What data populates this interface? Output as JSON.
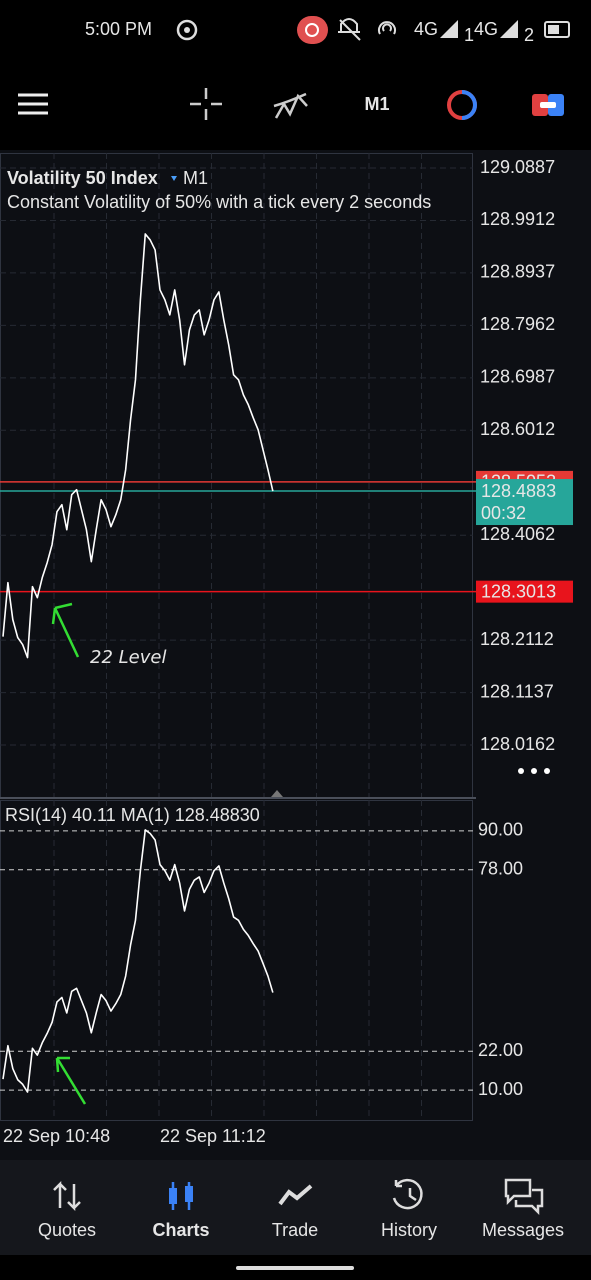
{
  "status_bar": {
    "time": "5:00 PM",
    "network_1": "4G",
    "sim_1": "1",
    "network_2": "4G",
    "sim_2": "2"
  },
  "toolbar": {
    "timeframe": "M1"
  },
  "chart_data": [
    {
      "type": "line",
      "title": "Volatility 50 Index",
      "timeframe": "M1",
      "subtitle": "Constant Volatility of 50% with a tick every 2 seconds",
      "categories": [
        "22 Sep 10:48",
        null,
        null,
        null,
        null,
        null,
        null,
        null,
        null,
        null,
        null,
        null,
        null,
        null,
        null,
        null,
        null,
        null,
        null,
        null,
        null,
        null,
        null,
        null,
        null,
        null,
        null,
        null,
        null,
        null,
        null,
        null,
        "22 Sep 11:12",
        null,
        null,
        null,
        null,
        null,
        null,
        null,
        null,
        null,
        null,
        null,
        null,
        null,
        null,
        null,
        null,
        null,
        null,
        null,
        null,
        null,
        null,
        null
      ],
      "values": [
        128.2177,
        128.318,
        128.2493,
        128.2159,
        128.2029,
        128.1787,
        128.3106,
        128.2901,
        128.3273,
        128.3551,
        128.3886,
        128.4499,
        128.4629,
        128.4164,
        128.4814,
        128.4907,
        128.4536,
        128.4164,
        128.357,
        128.4164,
        128.4721,
        128.4536,
        128.422,
        128.4443,
        128.4721,
        128.5279,
        128.6207,
        128.695,
        128.8436,
        128.9661,
        128.955,
        128.9364,
        128.8621,
        128.8436,
        128.8157,
        128.8621,
        128.8064,
        128.7229,
        128.7878,
        128.8157,
        128.825,
        128.7786,
        128.8064,
        128.8436,
        128.8584,
        128.8064,
        128.76,
        128.7043,
        128.695,
        128.6671,
        128.6486,
        128.6244,
        128.6021,
        128.565,
        128.5279,
        128.4883
      ],
      "color": "#ffffff",
      "ylim": [
        127.9196,
        129.1166
      ],
      "yticks": [
        129.0887,
        128.9912,
        128.8937,
        128.7962,
        128.6987,
        128.6012,
        128.4062,
        128.2112,
        128.1137,
        128.0162
      ],
      "grid": true,
      "price_lines": [
        {
          "value": 128.5053,
          "color": "#e53935"
        },
        {
          "value": 128.3013,
          "color": "#e8141c"
        }
      ],
      "current_price": 128.4883,
      "current_color": "#26a69a",
      "countdown": "00:32",
      "annotation": "22 Level"
    },
    {
      "type": "line",
      "indicator_label": "RSI(14) 40.11 MA(1) 128.48830",
      "values": [
        13.4,
        23.7,
        16.6,
        13.2,
        11.8,
        9.4,
        22.9,
        20.8,
        24.6,
        27.5,
        30.9,
        37.2,
        38.6,
        33.8,
        40.5,
        41.4,
        37.6,
        33.8,
        27.7,
        33.8,
        39.5,
        37.6,
        34.4,
        36.7,
        39.5,
        45.2,
        54.8,
        62.4,
        77.7,
        90.3,
        89.2,
        87.2,
        79.6,
        77.7,
        74.8,
        79.6,
        73.9,
        65.3,
        72.0,
        74.8,
        75.8,
        71.0,
        73.9,
        77.7,
        79.2,
        73.9,
        69.1,
        63.4,
        62.4,
        59.6,
        57.7,
        55.2,
        52.9,
        49.1,
        45.2,
        40.11
      ],
      "color": "#ffffff",
      "ylim": [
        0.77,
        99.54
      ],
      "yticks": [
        {
          "value": 90,
          "label": "90.00"
        },
        {
          "value": 78,
          "label": "78.00"
        },
        {
          "value": 22,
          "label": "22.00"
        },
        {
          "value": 10,
          "label": "10.00"
        }
      ],
      "grid": true
    }
  ],
  "nav": {
    "items": [
      "Quotes",
      "Charts",
      "Trade",
      "History",
      "Messages"
    ],
    "active": "Charts"
  }
}
